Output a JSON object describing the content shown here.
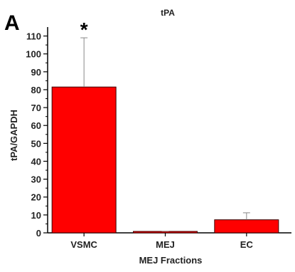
{
  "panel_label": "A",
  "chart_data": {
    "type": "bar",
    "title": "tPA",
    "xlabel": "MEJ Fractions",
    "ylabel": "tPA/GAPDH",
    "categories": [
      "VSMC",
      "MEJ",
      "EC"
    ],
    "values": [
      81.5,
      0.8,
      7.3
    ],
    "error_upper": [
      109,
      0.9,
      11.2
    ],
    "significance": [
      "*",
      "",
      ""
    ],
    "ylim": [
      0,
      115
    ],
    "yticks": [
      0,
      10,
      20,
      30,
      40,
      50,
      60,
      70,
      80,
      90,
      100,
      110
    ],
    "ytick_labels": [
      "0",
      "10",
      "20",
      "30",
      "40",
      "50",
      "60",
      "70",
      "80",
      "90",
      "100",
      "110"
    ],
    "grid": false,
    "bar_color": "#ff0000",
    "bar_edge_color": "#3a0000"
  }
}
